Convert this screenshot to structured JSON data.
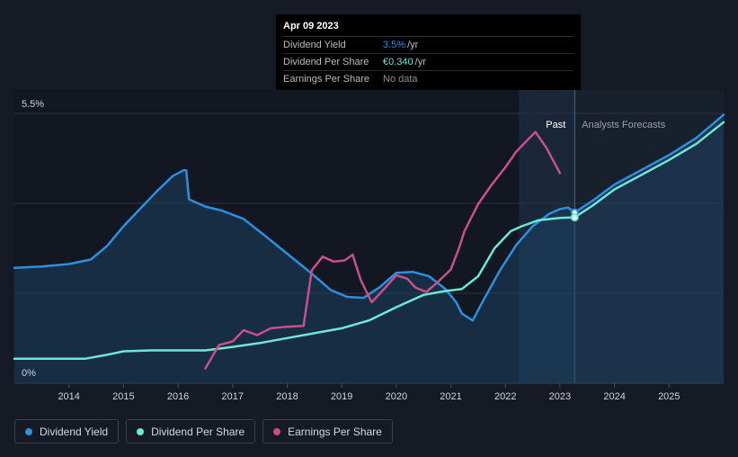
{
  "tooltip": {
    "date": "Apr 09 2023",
    "rows": [
      {
        "label": "Dividend Yield",
        "value": "3.5%",
        "unit": "/yr",
        "color": "#2d8fe0"
      },
      {
        "label": "Dividend Per Share",
        "value": "€0.340",
        "unit": "/yr",
        "color": "#6ee7d4"
      },
      {
        "label": "Earnings Per Share",
        "value": "No data",
        "unit": "",
        "color": "#8a8f99"
      }
    ]
  },
  "regions": {
    "past": "Past",
    "forecast": "Analysts Forecasts"
  },
  "legend": [
    {
      "label": "Dividend Yield",
      "color": "#2d8fe0"
    },
    {
      "label": "Dividend Per Share",
      "color": "#6ee7d4"
    },
    {
      "label": "Earnings Per Share",
      "color": "#c8508a"
    }
  ],
  "chart_data": {
    "type": "line",
    "title": "",
    "x_range": [
      2013.0,
      2026.0
    ],
    "x_ticks": [
      "2014",
      "2015",
      "2016",
      "2017",
      "2018",
      "2019",
      "2020",
      "2021",
      "2022",
      "2023",
      "2024",
      "2025"
    ],
    "y_range": [
      0,
      5.5
    ],
    "y_labels": [
      "5.5%",
      "0%"
    ],
    "past_region_start": 2022.25,
    "forecast_start": 2023.27,
    "series": [
      {
        "name": "Dividend Yield",
        "color": "#2d8fe0",
        "fill": true,
        "points": [
          [
            2013.0,
            2.35
          ],
          [
            2013.5,
            2.38
          ],
          [
            2014.0,
            2.43
          ],
          [
            2014.4,
            2.52
          ],
          [
            2014.7,
            2.8
          ],
          [
            2015.0,
            3.2
          ],
          [
            2015.3,
            3.55
          ],
          [
            2015.6,
            3.9
          ],
          [
            2015.9,
            4.22
          ],
          [
            2016.1,
            4.34
          ],
          [
            2016.15,
            4.34
          ],
          [
            2016.2,
            3.75
          ],
          [
            2016.5,
            3.6
          ],
          [
            2016.8,
            3.52
          ],
          [
            2017.2,
            3.35
          ],
          [
            2017.6,
            3.0
          ],
          [
            2018.0,
            2.64
          ],
          [
            2018.4,
            2.28
          ],
          [
            2018.8,
            1.9
          ],
          [
            2019.1,
            1.76
          ],
          [
            2019.4,
            1.74
          ],
          [
            2019.7,
            1.96
          ],
          [
            2020.0,
            2.25
          ],
          [
            2020.3,
            2.27
          ],
          [
            2020.6,
            2.18
          ],
          [
            2020.9,
            1.92
          ],
          [
            2021.1,
            1.65
          ],
          [
            2021.2,
            1.42
          ],
          [
            2021.4,
            1.28
          ],
          [
            2021.6,
            1.7
          ],
          [
            2021.9,
            2.3
          ],
          [
            2022.2,
            2.82
          ],
          [
            2022.5,
            3.2
          ],
          [
            2022.8,
            3.45
          ],
          [
            2023.0,
            3.55
          ],
          [
            2023.15,
            3.58
          ],
          [
            2023.27,
            3.48
          ],
          [
            2023.6,
            3.72
          ],
          [
            2024.0,
            4.05
          ],
          [
            2024.5,
            4.35
          ],
          [
            2025.0,
            4.65
          ],
          [
            2025.5,
            5.0
          ],
          [
            2026.0,
            5.47
          ]
        ]
      },
      {
        "name": "Dividend Per Share",
        "color": "#6ee7d4",
        "fill": false,
        "points": [
          [
            2013.0,
            0.5
          ],
          [
            2013.5,
            0.5
          ],
          [
            2014.3,
            0.5
          ],
          [
            2014.7,
            0.58
          ],
          [
            2015.0,
            0.65
          ],
          [
            2015.5,
            0.67
          ],
          [
            2016.5,
            0.67
          ],
          [
            2017.0,
            0.74
          ],
          [
            2017.5,
            0.82
          ],
          [
            2018.0,
            0.92
          ],
          [
            2018.5,
            1.02
          ],
          [
            2019.0,
            1.12
          ],
          [
            2019.5,
            1.28
          ],
          [
            2020.0,
            1.55
          ],
          [
            2020.5,
            1.8
          ],
          [
            2020.9,
            1.88
          ],
          [
            2021.2,
            1.92
          ],
          [
            2021.5,
            2.18
          ],
          [
            2021.8,
            2.75
          ],
          [
            2022.1,
            3.1
          ],
          [
            2022.3,
            3.2
          ],
          [
            2022.6,
            3.32
          ],
          [
            2023.0,
            3.37
          ],
          [
            2023.27,
            3.38
          ],
          [
            2023.6,
            3.62
          ],
          [
            2024.0,
            3.95
          ],
          [
            2024.5,
            4.25
          ],
          [
            2025.0,
            4.55
          ],
          [
            2025.5,
            4.88
          ],
          [
            2026.0,
            5.32
          ]
        ]
      },
      {
        "name": "Earnings Per Share",
        "color": "#c8508a",
        "fill": false,
        "points": [
          [
            2016.5,
            0.3
          ],
          [
            2016.75,
            0.78
          ],
          [
            2017.0,
            0.85
          ],
          [
            2017.2,
            1.08
          ],
          [
            2017.45,
            0.98
          ],
          [
            2017.7,
            1.12
          ],
          [
            2018.0,
            1.15
          ],
          [
            2018.3,
            1.17
          ],
          [
            2018.45,
            2.3
          ],
          [
            2018.65,
            2.58
          ],
          [
            2018.85,
            2.48
          ],
          [
            2019.05,
            2.5
          ],
          [
            2019.2,
            2.62
          ],
          [
            2019.35,
            2.1
          ],
          [
            2019.55,
            1.65
          ],
          [
            2019.8,
            1.95
          ],
          [
            2020.0,
            2.2
          ],
          [
            2020.2,
            2.13
          ],
          [
            2020.35,
            1.95
          ],
          [
            2020.55,
            1.86
          ],
          [
            2020.75,
            2.05
          ],
          [
            2021.0,
            2.32
          ],
          [
            2021.15,
            2.75
          ],
          [
            2021.25,
            3.1
          ],
          [
            2021.5,
            3.65
          ],
          [
            2021.75,
            4.05
          ],
          [
            2022.0,
            4.4
          ],
          [
            2022.2,
            4.72
          ],
          [
            2022.4,
            4.95
          ],
          [
            2022.55,
            5.12
          ],
          [
            2022.75,
            4.8
          ],
          [
            2023.0,
            4.28
          ]
        ]
      }
    ]
  }
}
